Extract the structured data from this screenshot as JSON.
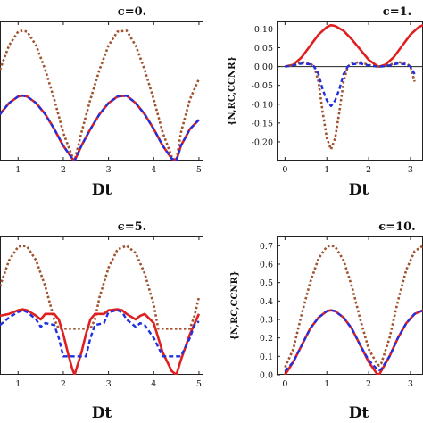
{
  "chart_data": [
    {
      "type": "line",
      "title": "ϵ=0.",
      "xlabel": "Dt",
      "ylabel": "",
      "xlim": [
        0.6,
        5.1
      ],
      "ylim": [
        0.0,
        0.75
      ],
      "xticks": [
        1,
        2,
        3,
        4,
        5
      ],
      "yticks": [],
      "series": [
        {
          "color": "#a0522d",
          "style": "dotted",
          "x": [
            0.6,
            0.8,
            1.0,
            1.1,
            1.2,
            1.4,
            1.6,
            1.8,
            2.0,
            2.2,
            2.25,
            2.4,
            2.6,
            2.8,
            3.0,
            3.2,
            3.4,
            3.6,
            3.8,
            4.0,
            4.2,
            4.4,
            4.5,
            4.6,
            4.8,
            5.0
          ],
          "y": [
            0.49,
            0.62,
            0.695,
            0.7,
            0.695,
            0.62,
            0.49,
            0.33,
            0.15,
            0.02,
            0.0,
            0.15,
            0.33,
            0.49,
            0.62,
            0.695,
            0.7,
            0.62,
            0.49,
            0.33,
            0.15,
            0.02,
            0.0,
            0.15,
            0.33,
            0.44
          ]
        },
        {
          "color": "#e02020",
          "style": "solid",
          "x": [
            0.6,
            0.8,
            1.0,
            1.1,
            1.2,
            1.4,
            1.6,
            1.8,
            2.0,
            2.2,
            2.25,
            2.4,
            2.6,
            2.8,
            3.0,
            3.2,
            3.4,
            3.6,
            3.8,
            4.0,
            4.2,
            4.4,
            4.5,
            4.6,
            4.8,
            5.0
          ],
          "y": [
            0.25,
            0.31,
            0.345,
            0.35,
            0.345,
            0.31,
            0.25,
            0.17,
            0.08,
            0.01,
            0.0,
            0.08,
            0.17,
            0.25,
            0.31,
            0.345,
            0.35,
            0.31,
            0.25,
            0.17,
            0.08,
            0.01,
            0.0,
            0.08,
            0.17,
            0.22
          ]
        },
        {
          "color": "#2030e0",
          "style": "dashed",
          "x": [
            0.6,
            0.8,
            1.0,
            1.1,
            1.2,
            1.4,
            1.6,
            1.8,
            2.0,
            2.2,
            2.25,
            2.4,
            2.6,
            2.8,
            3.0,
            3.2,
            3.4,
            3.6,
            3.8,
            4.0,
            4.2,
            4.4,
            4.5,
            4.6,
            4.8,
            5.0
          ],
          "y": [
            0.25,
            0.31,
            0.345,
            0.35,
            0.345,
            0.31,
            0.25,
            0.17,
            0.08,
            0.01,
            0.0,
            0.08,
            0.17,
            0.25,
            0.31,
            0.345,
            0.35,
            0.31,
            0.25,
            0.17,
            0.08,
            0.01,
            0.0,
            0.08,
            0.17,
            0.22
          ]
        }
      ]
    },
    {
      "type": "line",
      "title": "ϵ=1.",
      "xlabel": "Dt",
      "ylabel": "{N,RC,CCNR}",
      "xlim": [
        -0.2,
        3.3
      ],
      "ylim": [
        -0.25,
        0.12
      ],
      "xticks": [
        0,
        1,
        2,
        3
      ],
      "yticks": [
        0.1,
        0.05,
        0.0,
        -0.05,
        -0.1,
        -0.15,
        -0.2
      ],
      "ytick_labels": [
        "0.10",
        "0.05",
        "0.00",
        "-0.05",
        "-0.10",
        "-0.15",
        "-0.20"
      ],
      "series": [
        {
          "color": "#e02020",
          "style": "solid",
          "x": [
            0.0,
            0.2,
            0.4,
            0.6,
            0.8,
            1.0,
            1.1,
            1.2,
            1.4,
            1.6,
            1.8,
            2.0,
            2.2,
            2.25,
            2.4,
            2.6,
            2.8,
            3.0,
            3.2,
            3.3
          ],
          "y": [
            0.0,
            0.005,
            0.025,
            0.055,
            0.085,
            0.105,
            0.11,
            0.108,
            0.095,
            0.072,
            0.045,
            0.018,
            0.002,
            0.0,
            0.005,
            0.025,
            0.055,
            0.085,
            0.105,
            0.11
          ]
        },
        {
          "color": "#a0522d",
          "style": "dotted",
          "x": [
            0.0,
            0.2,
            0.4,
            0.6,
            0.7,
            0.8,
            0.9,
            1.0,
            1.1,
            1.2,
            1.3,
            1.4,
            1.5,
            1.6,
            1.8,
            2.0,
            2.2,
            2.25,
            2.3,
            2.5,
            2.7,
            2.9,
            3.0,
            3.1
          ],
          "y": [
            0.0,
            0.004,
            0.012,
            0.008,
            0.0,
            -0.04,
            -0.12,
            -0.19,
            -0.22,
            -0.19,
            -0.12,
            -0.04,
            0.0,
            0.008,
            0.012,
            0.004,
            0.0,
            0.0,
            0.0,
            0.004,
            0.012,
            0.008,
            0.0,
            -0.04
          ]
        },
        {
          "color": "#2030e0",
          "style": "dashed",
          "x": [
            0.0,
            0.2,
            0.4,
            0.6,
            0.7,
            0.8,
            0.9,
            1.0,
            1.1,
            1.2,
            1.3,
            1.4,
            1.5,
            1.6,
            1.8,
            2.0,
            2.2,
            2.25,
            2.3,
            2.5,
            2.7,
            2.9,
            3.0,
            3.1
          ],
          "y": [
            0.0,
            0.003,
            0.008,
            0.006,
            0.0,
            -0.02,
            -0.06,
            -0.09,
            -0.105,
            -0.09,
            -0.06,
            -0.02,
            0.0,
            0.006,
            0.008,
            0.003,
            0.0,
            0.0,
            0.0,
            0.003,
            0.008,
            0.006,
            0.0,
            -0.02
          ]
        }
      ]
    },
    {
      "type": "line",
      "title": "ϵ=5.",
      "xlabel": "Dt",
      "ylabel": "",
      "xlim": [
        0.6,
        5.1
      ],
      "ylim": [
        0.0,
        0.75
      ],
      "xticks": [
        1,
        2,
        3,
        4,
        5
      ],
      "yticks": [],
      "series": [
        {
          "color": "#a0522d",
          "style": "dotted",
          "x": [
            0.6,
            0.8,
            1.0,
            1.1,
            1.2,
            1.4,
            1.6,
            1.8,
            1.9,
            2.3,
            2.6,
            2.7,
            2.8,
            3.0,
            3.2,
            3.4,
            3.6,
            3.8,
            4.0,
            4.1,
            4.5,
            4.8,
            4.9,
            5.0
          ],
          "y": [
            0.48,
            0.62,
            0.695,
            0.7,
            0.695,
            0.62,
            0.48,
            0.3,
            0.25,
            0.25,
            0.25,
            0.3,
            0.42,
            0.58,
            0.68,
            0.7,
            0.66,
            0.55,
            0.38,
            0.25,
            0.25,
            0.25,
            0.32,
            0.42
          ]
        },
        {
          "color": "#e02020",
          "style": "solid",
          "x": [
            0.6,
            0.8,
            1.0,
            1.1,
            1.2,
            1.4,
            1.5,
            1.6,
            1.8,
            1.9,
            2.0,
            2.1,
            2.2,
            2.25,
            2.3,
            2.4,
            2.5,
            2.6,
            2.7,
            2.9,
            3.0,
            3.2,
            3.3,
            3.4,
            3.6,
            3.7,
            3.8,
            4.0,
            4.2,
            4.4,
            4.5,
            4.6,
            4.8,
            5.0
          ],
          "y": [
            0.32,
            0.33,
            0.35,
            0.355,
            0.35,
            0.32,
            0.3,
            0.33,
            0.33,
            0.3,
            0.22,
            0.12,
            0.03,
            0.0,
            0.04,
            0.12,
            0.22,
            0.3,
            0.33,
            0.33,
            0.35,
            0.355,
            0.35,
            0.33,
            0.3,
            0.32,
            0.33,
            0.28,
            0.12,
            0.02,
            0.0,
            0.08,
            0.22,
            0.33
          ]
        },
        {
          "color": "#2030e0",
          "style": "dashed",
          "x": [
            0.6,
            0.8,
            1.0,
            1.1,
            1.2,
            1.4,
            1.5,
            1.6,
            1.8,
            1.9,
            2.0,
            2.3,
            2.5,
            2.6,
            2.7,
            2.9,
            3.0,
            3.2,
            3.3,
            3.4,
            3.6,
            3.7,
            3.8,
            4.0,
            4.2,
            4.4,
            4.6,
            4.8,
            4.9,
            5.0
          ],
          "y": [
            0.27,
            0.31,
            0.34,
            0.35,
            0.34,
            0.3,
            0.26,
            0.28,
            0.27,
            0.2,
            0.1,
            0.1,
            0.1,
            0.2,
            0.27,
            0.28,
            0.34,
            0.35,
            0.34,
            0.3,
            0.26,
            0.28,
            0.27,
            0.2,
            0.1,
            0.1,
            0.1,
            0.2,
            0.27,
            0.29
          ]
        }
      ]
    },
    {
      "type": "line",
      "title": "ϵ=10.",
      "xlabel": "Dt",
      "ylabel": "{N,RC,CCNR}",
      "xlim": [
        -0.2,
        3.3
      ],
      "ylim": [
        0.0,
        0.75
      ],
      "xticks": [
        0,
        1,
        2,
        3
      ],
      "yticks": [
        0.0,
        0.1,
        0.2,
        0.3,
        0.4,
        0.5,
        0.6,
        0.7
      ],
      "ytick_labels": [
        "0.0",
        "0.1",
        "0.2",
        "0.3",
        "0.4",
        "0.5",
        "0.6",
        "0.7"
      ],
      "series": [
        {
          "color": "#a0522d",
          "style": "dotted",
          "x": [
            0.0,
            0.2,
            0.4,
            0.6,
            0.8,
            1.0,
            1.1,
            1.2,
            1.4,
            1.6,
            1.8,
            2.0,
            2.2,
            2.25,
            2.3,
            2.5,
            2.7,
            2.9,
            3.1,
            3.3
          ],
          "y": [
            0.04,
            0.14,
            0.33,
            0.5,
            0.63,
            0.695,
            0.7,
            0.695,
            0.62,
            0.48,
            0.3,
            0.14,
            0.06,
            0.05,
            0.06,
            0.2,
            0.4,
            0.57,
            0.67,
            0.7
          ]
        },
        {
          "color": "#e02020",
          "style": "solid",
          "x": [
            0.0,
            0.2,
            0.4,
            0.6,
            0.8,
            1.0,
            1.1,
            1.2,
            1.4,
            1.6,
            1.8,
            2.0,
            2.2,
            2.25,
            2.3,
            2.5,
            2.7,
            2.9,
            3.1,
            3.3
          ],
          "y": [
            0.0,
            0.07,
            0.16,
            0.25,
            0.31,
            0.345,
            0.35,
            0.345,
            0.31,
            0.25,
            0.16,
            0.07,
            0.005,
            0.0,
            0.02,
            0.1,
            0.2,
            0.28,
            0.33,
            0.35
          ]
        },
        {
          "color": "#2030e0",
          "style": "dashed",
          "x": [
            0.0,
            0.2,
            0.4,
            0.6,
            0.8,
            1.0,
            1.1,
            1.2,
            1.4,
            1.6,
            1.8,
            2.0,
            2.2,
            2.25,
            2.3,
            2.5,
            2.7,
            2.9,
            3.1,
            3.3
          ],
          "y": [
            0.02,
            0.07,
            0.16,
            0.25,
            0.31,
            0.345,
            0.35,
            0.345,
            0.31,
            0.25,
            0.16,
            0.08,
            0.03,
            0.025,
            0.03,
            0.1,
            0.2,
            0.28,
            0.33,
            0.35
          ]
        }
      ]
    }
  ]
}
